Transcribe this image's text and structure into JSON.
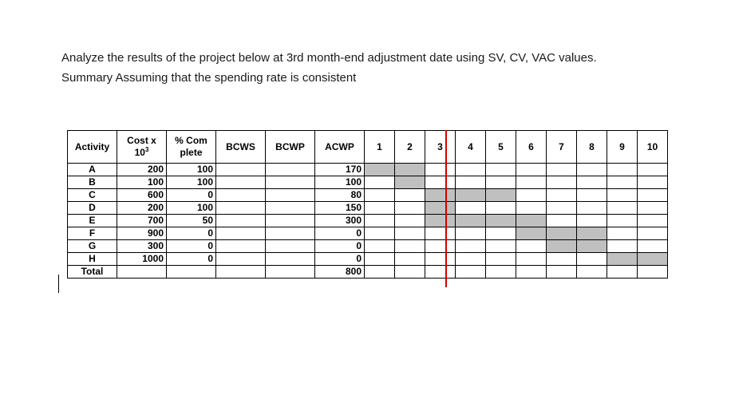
{
  "paragraph": {
    "line1": "Analyze the results of the project below at 3rd month-end adjustment date using SV, CV, VAC values.",
    "line2": "Summary Assuming that the spending rate is consistent"
  },
  "table": {
    "headers": {
      "activity": "Activity",
      "cost_line1": "Cost x",
      "cost_line2_base": "10",
      "cost_line2_exp": "3",
      "complete_line1": "% Com",
      "complete_line2": "plete",
      "bcws": "BCWS",
      "bcwp": "BCWP",
      "acwp": "ACWP",
      "months": [
        "1",
        "2",
        "3",
        "4",
        "5",
        "6",
        "7",
        "8",
        "9",
        "10"
      ]
    },
    "rows": [
      {
        "activity": "A",
        "cost": "200",
        "complete": "100",
        "bcws": "",
        "bcwp": "",
        "acwp": "170",
        "bars": [
          1,
          2
        ]
      },
      {
        "activity": "B",
        "cost": "100",
        "complete": "100",
        "bcws": "",
        "bcwp": "",
        "acwp": "100",
        "bars": [
          2
        ]
      },
      {
        "activity": "C",
        "cost": "600",
        "complete": "0",
        "bcws": "",
        "bcwp": "",
        "acwp": "80",
        "bars": [
          3,
          4,
          5
        ]
      },
      {
        "activity": "D",
        "cost": "200",
        "complete": "100",
        "bcws": "",
        "bcwp": "",
        "acwp": "150",
        "bars": [
          3
        ]
      },
      {
        "activity": "E",
        "cost": "700",
        "complete": "50",
        "bcws": "",
        "bcwp": "",
        "acwp": "300",
        "bars": [
          3,
          4,
          5,
          6
        ]
      },
      {
        "activity": "F",
        "cost": "900",
        "complete": "0",
        "bcws": "",
        "bcwp": "",
        "acwp": "0",
        "bars": [
          6,
          7,
          8
        ]
      },
      {
        "activity": "G",
        "cost": "300",
        "complete": "0",
        "bcws": "",
        "bcwp": "",
        "acwp": "0",
        "bars": [
          7,
          8
        ]
      },
      {
        "activity": "H",
        "cost": "1000",
        "complete": "0",
        "bcws": "",
        "bcwp": "",
        "acwp": "0",
        "bars": [
          9,
          10
        ]
      }
    ],
    "total": {
      "label": "Total",
      "cost": "",
      "complete": "",
      "bcws": "",
      "bcwp": "",
      "acwp": "800"
    },
    "status_line_after_month": 3,
    "colors": {
      "bar_fill": "#c0c0c0",
      "status_line": "#d40000"
    }
  }
}
